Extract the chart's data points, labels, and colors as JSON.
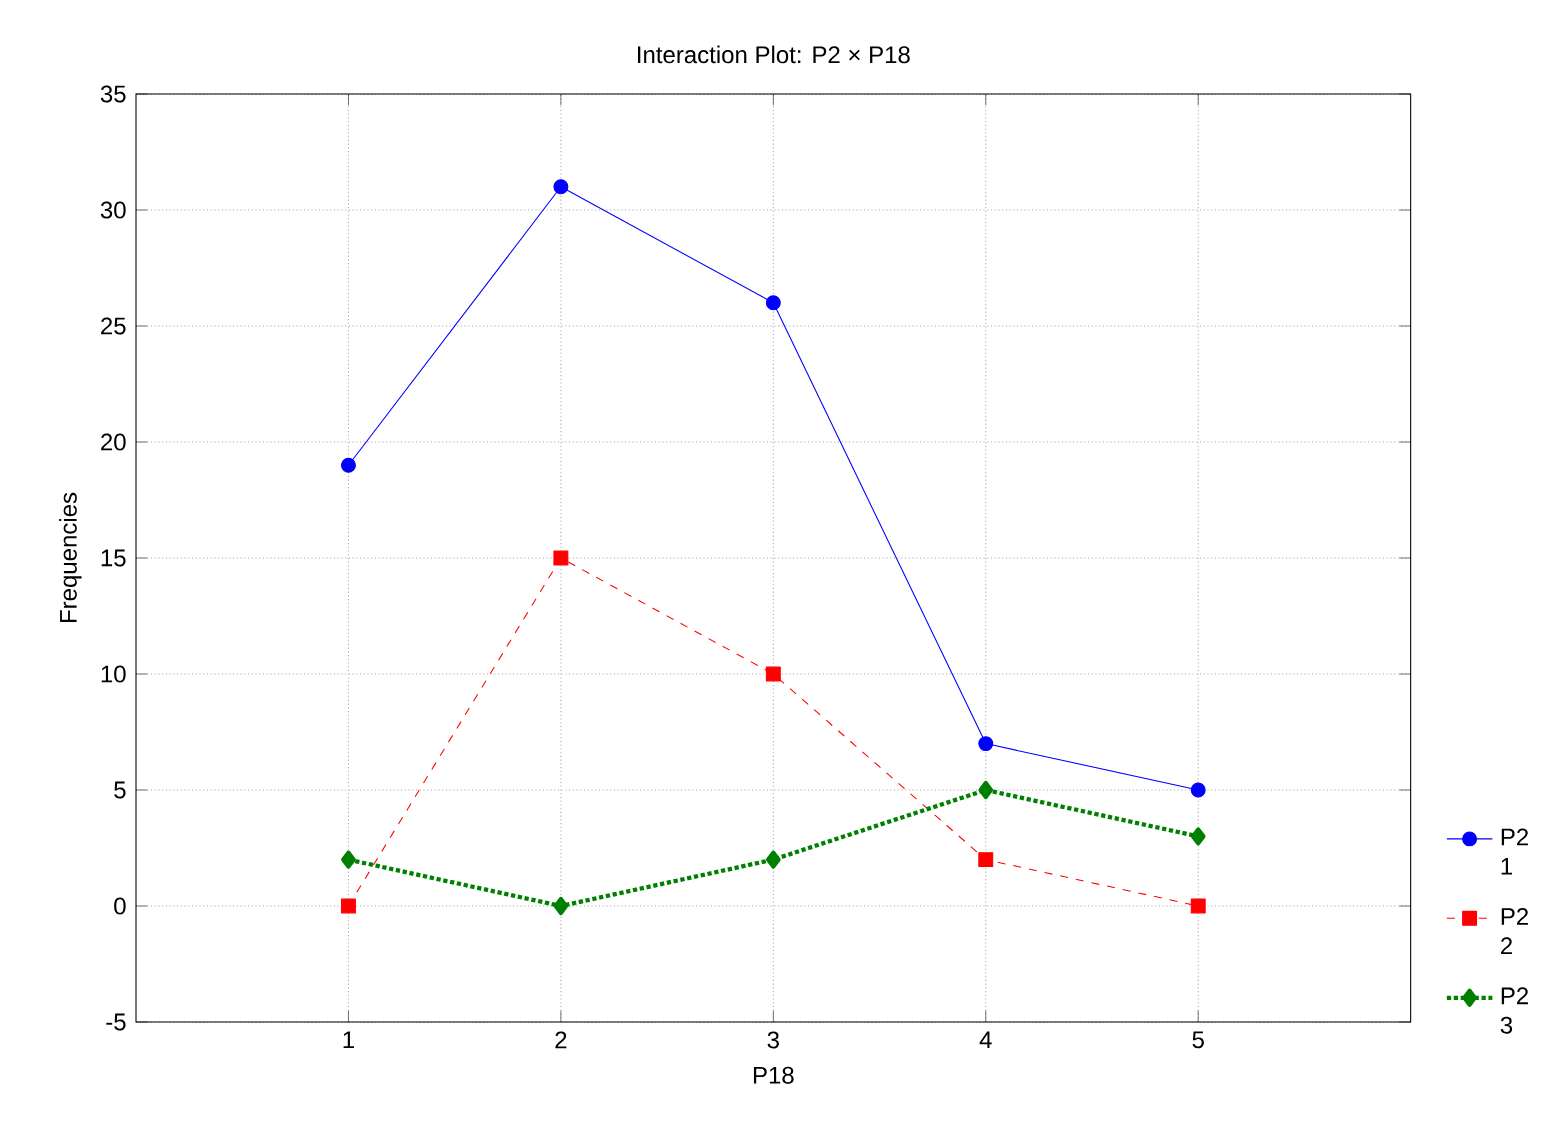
{
  "chart_data": {
    "type": "line",
    "title": "Interaction Plot: P2 × P18",
    "xlabel": "P18",
    "ylabel": "Frequencies",
    "x": [
      1,
      2,
      3,
      4,
      5
    ],
    "series": [
      {
        "name": "P2 1",
        "color": "#0000ff",
        "values": [
          19,
          31,
          26,
          7,
          5
        ],
        "marker": "circle",
        "line_style": "solid"
      },
      {
        "name": "P2 2",
        "color": "#ff0000",
        "values": [
          0,
          15,
          10,
          2,
          0
        ],
        "marker": "square",
        "line_style": "dashed"
      },
      {
        "name": "P2 3",
        "color": "#008000",
        "values": [
          2,
          0,
          2,
          5,
          3
        ],
        "marker": "diamond",
        "line_style": "dotted"
      }
    ],
    "xlim": [
      0,
      6
    ],
    "xticks": [
      1,
      2,
      3,
      4,
      5
    ],
    "ylim": [
      -5,
      35
    ],
    "yticks": [
      -5,
      0,
      5,
      10,
      15,
      20,
      25,
      30,
      35
    ],
    "grid": true,
    "legend": "bottom right"
  }
}
